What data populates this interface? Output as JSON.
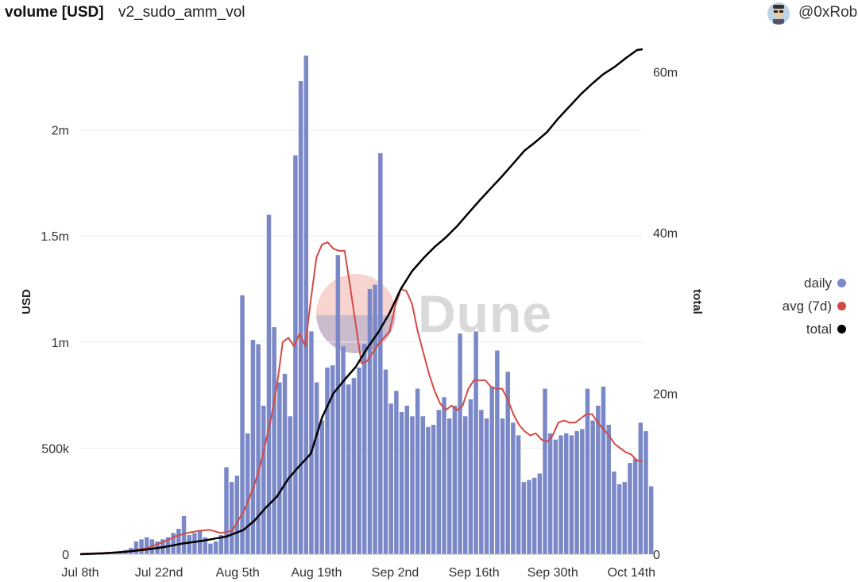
{
  "header": {
    "title": "volume [USD]",
    "query_name": "v2_sudo_amm_vol",
    "author": "@0xRob"
  },
  "watermark": "Dune",
  "legend": [
    {
      "label": "daily",
      "color": "#7b88c8"
    },
    {
      "label": "avg (7d)",
      "color": "#d34a45"
    },
    {
      "label": "total",
      "color": "#000000"
    }
  ],
  "chart_data": {
    "type": "bar",
    "ylabel": "USD",
    "y2label": "total",
    "xlim": [
      0,
      100
    ],
    "x_ticks": [
      {
        "day": 0,
        "label": "Jul 8th"
      },
      {
        "day": 14,
        "label": "Jul 22nd"
      },
      {
        "day": 28,
        "label": "Aug 5th"
      },
      {
        "day": 42,
        "label": "Aug 19th"
      },
      {
        "day": 56,
        "label": "Sep 2nd"
      },
      {
        "day": 70,
        "label": "Sep 16th"
      },
      {
        "day": 84,
        "label": "Sep 30th"
      },
      {
        "day": 98,
        "label": "Oct 14th"
      }
    ],
    "y_ticks": [
      {
        "value": 0,
        "label": "0"
      },
      {
        "value": 500000,
        "label": "500k"
      },
      {
        "value": 1000000,
        "label": "1m"
      },
      {
        "value": 1500000,
        "label": "1.5m"
      },
      {
        "value": 2000000,
        "label": "2m"
      }
    ],
    "y2_ticks": [
      {
        "value": 0,
        "label": "0"
      },
      {
        "value": 20000000,
        "label": "20m"
      },
      {
        "value": 40000000,
        "label": "40m"
      },
      {
        "value": 60000000,
        "label": "60m"
      }
    ],
    "ylim": [
      0,
      2380000
    ],
    "y2lim": [
      0,
      62800000
    ],
    "series": [
      {
        "name": "daily",
        "type": "bar",
        "axis": "left",
        "color": "#7b88c8",
        "values": [
          5000,
          5000,
          6000,
          7000,
          8000,
          10000,
          12000,
          14000,
          20000,
          30000,
          60000,
          70000,
          80000,
          70000,
          60000,
          70000,
          80000,
          100000,
          120000,
          180000,
          90000,
          100000,
          110000,
          80000,
          50000,
          60000,
          90000,
          410000,
          340000,
          370000,
          1220000,
          570000,
          1010000,
          990000,
          700000,
          1600000,
          1070000,
          810000,
          850000,
          650000,
          1880000,
          2230000,
          2350000,
          1050000,
          810000,
          630000,
          880000,
          890000,
          1410000,
          980000,
          800000,
          830000,
          880000,
          990000,
          1250000,
          1270000,
          1890000,
          870000,
          710000,
          770000,
          670000,
          700000,
          650000,
          780000,
          650000,
          600000,
          610000,
          680000,
          740000,
          640000,
          700000,
          1040000,
          650000,
          730000,
          1050000,
          680000,
          640000,
          790000,
          960000,
          640000,
          860000,
          620000,
          560000,
          340000,
          350000,
          360000,
          380000,
          780000,
          570000,
          540000,
          560000,
          570000,
          560000,
          580000,
          590000,
          780000,
          630000,
          700000,
          790000,
          610000,
          390000,
          330000,
          340000,
          430000,
          450000,
          620000,
          580000,
          320000
        ],
        "x_start": 0,
        "x_step": 0.944
      },
      {
        "name": "avg (7d)",
        "type": "line",
        "axis": "left",
        "color": "#d34a45",
        "points": [
          [
            0,
            2000
          ],
          [
            3,
            5000
          ],
          [
            6,
            8000
          ],
          [
            9,
            15000
          ],
          [
            12,
            30000
          ],
          [
            15,
            60000
          ],
          [
            17,
            85000
          ],
          [
            19,
            100000
          ],
          [
            21,
            110000
          ],
          [
            23,
            115000
          ],
          [
            25,
            100000
          ],
          [
            27,
            110000
          ],
          [
            29,
            200000
          ],
          [
            30,
            260000
          ],
          [
            31,
            330000
          ],
          [
            32,
            420000
          ],
          [
            33,
            530000
          ],
          [
            34,
            650000
          ],
          [
            35,
            800000
          ],
          [
            36,
            1000000
          ],
          [
            37,
            1020000
          ],
          [
            38,
            980000
          ],
          [
            39,
            1040000
          ],
          [
            40,
            980000
          ],
          [
            41,
            1200000
          ],
          [
            42,
            1400000
          ],
          [
            43,
            1460000
          ],
          [
            44,
            1470000
          ],
          [
            45,
            1440000
          ],
          [
            46,
            1430000
          ],
          [
            47,
            1430000
          ],
          [
            48,
            1260000
          ],
          [
            49,
            1080000
          ],
          [
            50,
            900000
          ],
          [
            51,
            910000
          ],
          [
            52,
            950000
          ],
          [
            53,
            990000
          ],
          [
            54,
            1020000
          ],
          [
            55,
            1050000
          ],
          [
            56,
            1170000
          ],
          [
            57,
            1250000
          ],
          [
            58,
            1240000
          ],
          [
            59,
            1180000
          ],
          [
            60,
            1050000
          ],
          [
            61,
            950000
          ],
          [
            62,
            850000
          ],
          [
            63,
            770000
          ],
          [
            64,
            710000
          ],
          [
            65,
            680000
          ],
          [
            66,
            700000
          ],
          [
            67,
            680000
          ],
          [
            68,
            700000
          ],
          [
            69,
            780000
          ],
          [
            70,
            820000
          ],
          [
            71,
            820000
          ],
          [
            72,
            820000
          ],
          [
            73,
            790000
          ],
          [
            74,
            780000
          ],
          [
            75,
            780000
          ],
          [
            76,
            730000
          ],
          [
            77,
            660000
          ],
          [
            78,
            610000
          ],
          [
            79,
            580000
          ],
          [
            80,
            560000
          ],
          [
            81,
            570000
          ],
          [
            82,
            540000
          ],
          [
            83,
            530000
          ],
          [
            84,
            560000
          ],
          [
            85,
            620000
          ],
          [
            86,
            630000
          ],
          [
            87,
            620000
          ],
          [
            88,
            620000
          ],
          [
            89,
            640000
          ],
          [
            90,
            660000
          ],
          [
            91,
            660000
          ],
          [
            92,
            620000
          ],
          [
            93,
            590000
          ],
          [
            94,
            560000
          ],
          [
            95,
            520000
          ],
          [
            96,
            500000
          ],
          [
            97,
            480000
          ],
          [
            98,
            470000
          ],
          [
            99,
            440000
          ],
          [
            100,
            440000
          ]
        ]
      },
      {
        "name": "total",
        "type": "line",
        "axis": "right",
        "color": "#000000",
        "points": [
          [
            0,
            0
          ],
          [
            4,
            100000
          ],
          [
            8,
            300000
          ],
          [
            12,
            600000
          ],
          [
            15,
            900000
          ],
          [
            18,
            1300000
          ],
          [
            22,
            1700000
          ],
          [
            26,
            2200000
          ],
          [
            29,
            3000000
          ],
          [
            31,
            4200000
          ],
          [
            33,
            5800000
          ],
          [
            35,
            7200000
          ],
          [
            37,
            9400000
          ],
          [
            39,
            11000000
          ],
          [
            41,
            12500000
          ],
          [
            43,
            17000000
          ],
          [
            45,
            20000000
          ],
          [
            47,
            21700000
          ],
          [
            49,
            23300000
          ],
          [
            51,
            25600000
          ],
          [
            53,
            27600000
          ],
          [
            55,
            30000000
          ],
          [
            57,
            33000000
          ],
          [
            59,
            35200000
          ],
          [
            61,
            36800000
          ],
          [
            63,
            38200000
          ],
          [
            65,
            39400000
          ],
          [
            67,
            40800000
          ],
          [
            69,
            42400000
          ],
          [
            71,
            44000000
          ],
          [
            73,
            45500000
          ],
          [
            75,
            47000000
          ],
          [
            77,
            48600000
          ],
          [
            79,
            50200000
          ],
          [
            81,
            51300000
          ],
          [
            83,
            52500000
          ],
          [
            85,
            54200000
          ],
          [
            87,
            55700000
          ],
          [
            89,
            57200000
          ],
          [
            91,
            58500000
          ],
          [
            93,
            59700000
          ],
          [
            95,
            60600000
          ],
          [
            97,
            61700000
          ],
          [
            99,
            62700000
          ],
          [
            100,
            62800000
          ]
        ]
      }
    ]
  }
}
